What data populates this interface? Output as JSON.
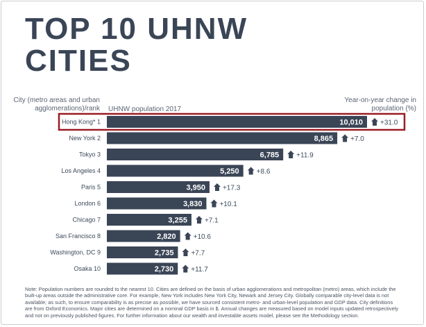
{
  "title_line1": "TOP 10 UHNW",
  "title_line2": "CITIES",
  "header_city": "City (metro areas and urban agglomerations)/rank",
  "header_population": "UHNW population 2017",
  "header_change": "Year-on-year change in population (%)",
  "note": "Note: Population numbers are rounded to the nearest 10. Cities are defined on the basis of urban agglomerations and metropolitan (metro) areas, which include the built-up areas outside the administrative core. For example, New York includes New York City, Newark and Jersey City. Globally comparable city-level data is not available; as such, to ensure comparability is as precise as possible, we have sourced consistent metro- and urban-level population and GDP data. City definitions are from Oxford Economics. Major cities are determined on a nominal GDP basis in $. Annual changes are measured based on model inputs updated retrospectively and not on previously published figures. For further information about our wealth and investable assets model, please see the Methodology section.",
  "colors": {
    "bar": "#3a4556",
    "highlight": "#9b1b24",
    "text": "#3d4a5c"
  },
  "icons": {
    "change": "house-up-arrow-icon"
  },
  "chart_data": {
    "type": "bar",
    "orientation": "horizontal",
    "title": "TOP 10 UHNW CITIES",
    "categories": [
      "Hong Kong*",
      "New York",
      "Tokyo",
      "Los Angeles",
      "Paris",
      "London",
      "Chicago",
      "San Francisco",
      "Washington, DC",
      "Osaka"
    ],
    "ranks": [
      "1",
      "2",
      "3",
      "4",
      "5",
      "6",
      "7",
      "8",
      "9",
      "10"
    ],
    "series": [
      {
        "values": [
          10010,
          8865,
          6785,
          5250,
          3950,
          3830,
          3255,
          2820,
          2735,
          2730
        ]
      }
    ],
    "value_labels": [
      "10,010",
      "8,865",
      "6,785",
      "5,250",
      "3,950",
      "3,830",
      "3,255",
      "2,820",
      "2,735",
      "2,730"
    ],
    "yoy_change_labels": [
      "+31.0",
      "+7.0",
      "+11.9",
      "+8.6",
      "+17.3",
      "+10.1",
      "+7.1",
      "+10.6",
      "+7.7",
      "+11.7"
    ],
    "yoy_change": [
      31.0,
      7.0,
      11.9,
      8.6,
      17.3,
      10.1,
      7.1,
      10.6,
      7.7,
      11.7
    ],
    "highlighted_category": "Hong Kong*",
    "xlim": [
      0,
      10010
    ],
    "grid": false,
    "legend": "none"
  }
}
